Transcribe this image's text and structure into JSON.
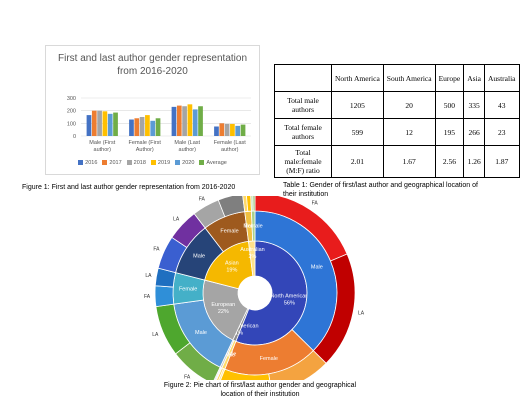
{
  "chart_data": [
    {
      "type": "bar",
      "title": "First and last author gender representation from 2016-2020",
      "caption": "Figure 1: First and last author gender representation from 2016-2020",
      "categories": [
        "Male (First author)",
        "Female (First Author)",
        "Male (Last author)",
        "Female (Last author)"
      ],
      "series": [
        {
          "name": "2016",
          "color": "#4472c4",
          "values": [
            165,
            130,
            230,
            75
          ]
        },
        {
          "name": "2017",
          "color": "#ed7d31",
          "values": [
            200,
            140,
            240,
            100
          ]
        },
        {
          "name": "2018",
          "color": "#a5a5a5",
          "values": [
            200,
            150,
            235,
            95
          ]
        },
        {
          "name": "2019",
          "color": "#ffc000",
          "values": [
            195,
            165,
            250,
            95
          ]
        },
        {
          "name": "2020",
          "color": "#5b9bd5",
          "values": [
            175,
            120,
            210,
            80
          ]
        },
        {
          "name": "Average",
          "color": "#70ad47",
          "values": [
            185,
            140,
            235,
            90
          ]
        }
      ],
      "ylim": [
        0,
        300
      ],
      "yticks": [
        0,
        100,
        200,
        300
      ],
      "grid": true,
      "legend": "bottom"
    },
    {
      "type": "sunburst",
      "caption": "Figure 2: Pie chart of first/last author gender and geographical location of their institution",
      "segments": [
        {
          "name": "North American",
          "value": 56,
          "value_label": "56%",
          "color": "#3346b8",
          "children": [
            {
              "name": "Male",
              "value": 1205,
              "color": "#2e75d6",
              "children": [
                {
                  "name": "FA",
                  "value": 600,
                  "color": "#e81c1c"
                },
                {
                  "name": "LA",
                  "value": 605,
                  "color": "#c00000"
                }
              ]
            },
            {
              "name": "Female",
              "value": 599,
              "color": "#ed7d31",
              "children": [
                {
                  "name": "FA",
                  "value": 320,
                  "color": "#f4a340"
                },
                {
                  "name": "LA",
                  "value": 279,
                  "color": "#ffc000"
                }
              ]
            }
          ]
        },
        {
          "name": "South American",
          "value": 1,
          "value_label": "1%",
          "color": "#8c8c8c",
          "children": [
            {
              "name": "Male",
              "value": 20,
              "color": "#ffd966",
              "children": [
                {
                  "name": "FA",
                  "value": 10,
                  "color": "#ffe699"
                },
                {
                  "name": "LA",
                  "value": 10,
                  "color": "#ffd24d"
                }
              ]
            },
            {
              "name": "Female",
              "value": 12,
              "color": "#c9c9c9",
              "children": [
                {
                  "name": "FA",
                  "value": 6,
                  "color": "#dddddd"
                },
                {
                  "name": "LA",
                  "value": 6,
                  "color": "#bfbfbf"
                }
              ]
            }
          ]
        },
        {
          "name": "European",
          "value": 22,
          "value_label": "22%",
          "color": "#a5a5a5",
          "children": [
            {
              "name": "Male",
              "value": 500,
              "color": "#5b9bd5",
              "children": [
                {
                  "name": "FA",
                  "value": 240,
                  "color": "#70ad47"
                },
                {
                  "name": "LA",
                  "value": 260,
                  "color": "#4ea72e"
                }
              ]
            },
            {
              "name": "Female",
              "value": 195,
              "color": "#44b0c8",
              "children": [
                {
                  "name": "FA",
                  "value": 105,
                  "color": "#2f8fd8"
                },
                {
                  "name": "LA",
                  "value": 90,
                  "color": "#1f6fc0"
                }
              ]
            }
          ]
        },
        {
          "name": "Asian",
          "value": 19,
          "value_label": "19%",
          "color": "#f5b800",
          "children": [
            {
              "name": "Male",
              "value": 335,
              "color": "#264478",
              "children": [
                {
                  "name": "FA",
                  "value": 170,
                  "color": "#3a5fd0"
                },
                {
                  "name": "LA",
                  "value": 165,
                  "color": "#7030a0"
                }
              ]
            },
            {
              "name": "Female",
              "value": 266,
              "color": "#9e5a1e",
              "children": [
                {
                  "name": "FA",
                  "value": 140,
                  "color": "#a5a5a5"
                },
                {
                  "name": "LA",
                  "value": 126,
                  "color": "#7f7f7f"
                }
              ]
            }
          ]
        },
        {
          "name": "Australian",
          "value": 2,
          "value_label": "2%",
          "color": "#ffe08a",
          "children": [
            {
              "name": "Male",
              "value": 43,
              "color": "#f0c040",
              "children": [
                {
                  "name": "FA",
                  "value": 20,
                  "color": "#ffd966"
                },
                {
                  "name": "LA",
                  "value": 23,
                  "color": "#ffc000"
                }
              ]
            },
            {
              "name": "Female",
              "value": 23,
              "color": "#a9d18e",
              "children": [
                {
                  "name": "FA",
                  "value": 12,
                  "color": "#c5e0b4"
                },
                {
                  "name": "LA",
                  "value": 11,
                  "color": "#8fbc6b"
                }
              ]
            }
          ]
        }
      ]
    }
  ],
  "table": {
    "caption": "Table 1: Gender of first/last author and geographical location of their institution",
    "header": [
      "North America",
      "South America",
      "Europe",
      "Asia",
      "Australia"
    ],
    "rows": [
      [
        "Total male authors",
        "1205",
        "20",
        "500",
        "335",
        "43"
      ],
      [
        "Total female authors",
        "599",
        "12",
        "195",
        "266",
        "23"
      ],
      [
        "Total male:female (M:F) ratio",
        "2.01",
        "1.67",
        "2.56",
        "1.26",
        "1.87"
      ]
    ]
  }
}
